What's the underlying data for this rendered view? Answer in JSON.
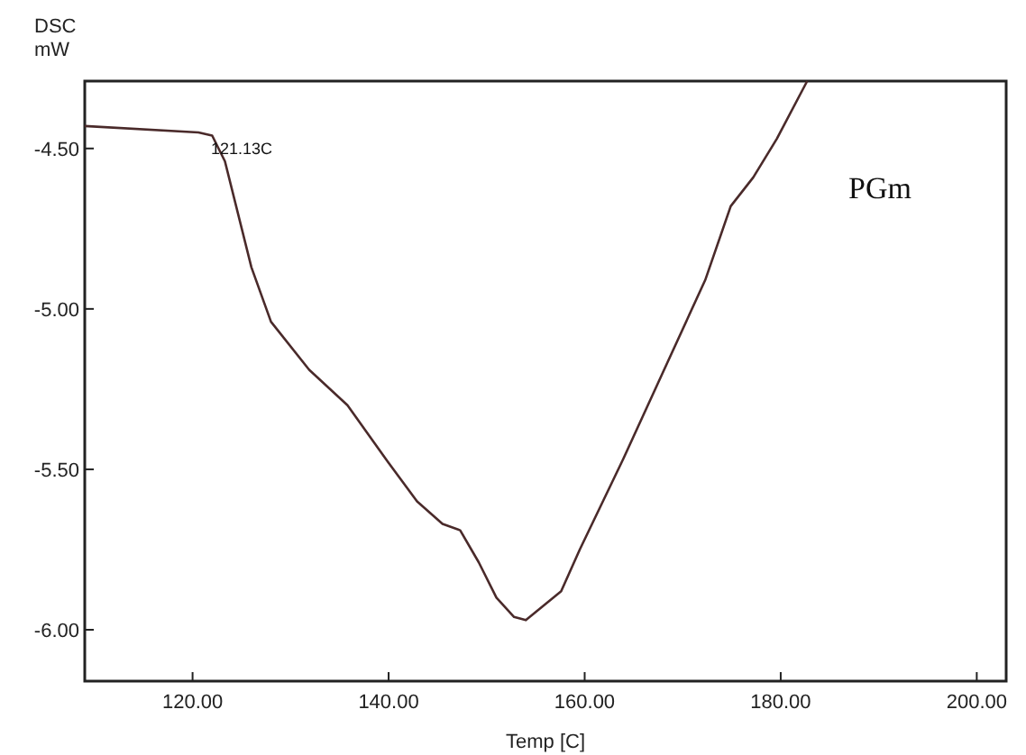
{
  "chart_data": {
    "type": "line",
    "xlabel": "Temp [C]",
    "ylabel": "DSC\nmW",
    "xlim": [
      109,
      203
    ],
    "ylim": [
      -6.16,
      -4.29
    ],
    "xticks": [
      {
        "value": 120,
        "label": "120.00"
      },
      {
        "value": 140,
        "label": "140.00"
      },
      {
        "value": 160,
        "label": "160.00"
      },
      {
        "value": 180,
        "label": "180.00"
      },
      {
        "value": 200,
        "label": "200.00"
      }
    ],
    "yticks": [
      {
        "value": -4.5,
        "label": "-4.50"
      },
      {
        "value": -5,
        "label": "-5.00"
      },
      {
        "value": -5.5,
        "label": "-5.50"
      },
      {
        "value": -6,
        "label": "-6.00"
      }
    ],
    "grid": false,
    "marker": "none",
    "line_style": "solid",
    "series": [
      {
        "color": "#4a2a2a",
        "x": [
          109,
          120.6,
          122,
          123.3,
          126,
          128,
          131.9,
          135.8,
          140,
          142.9,
          145.5,
          147.3,
          149.2,
          151,
          152.8,
          154,
          157.6,
          159.5,
          163.9,
          168.1,
          172.3,
          174.9,
          177.2,
          179.6,
          182.7
        ],
        "values": [
          -4.43,
          -4.45,
          -4.46,
          -4.54,
          -4.87,
          -5.04,
          -5.19,
          -5.3,
          -5.48,
          -5.6,
          -5.67,
          -5.69,
          -5.79,
          -5.9,
          -5.96,
          -5.97,
          -5.88,
          -5.75,
          -5.47,
          -5.19,
          -4.91,
          -4.68,
          -4.59,
          -4.47,
          -4.29
        ]
      }
    ],
    "annotations": [
      {
        "text": "121.13C",
        "x": 121.13,
        "y": -4.46
      },
      "PGm"
    ]
  }
}
